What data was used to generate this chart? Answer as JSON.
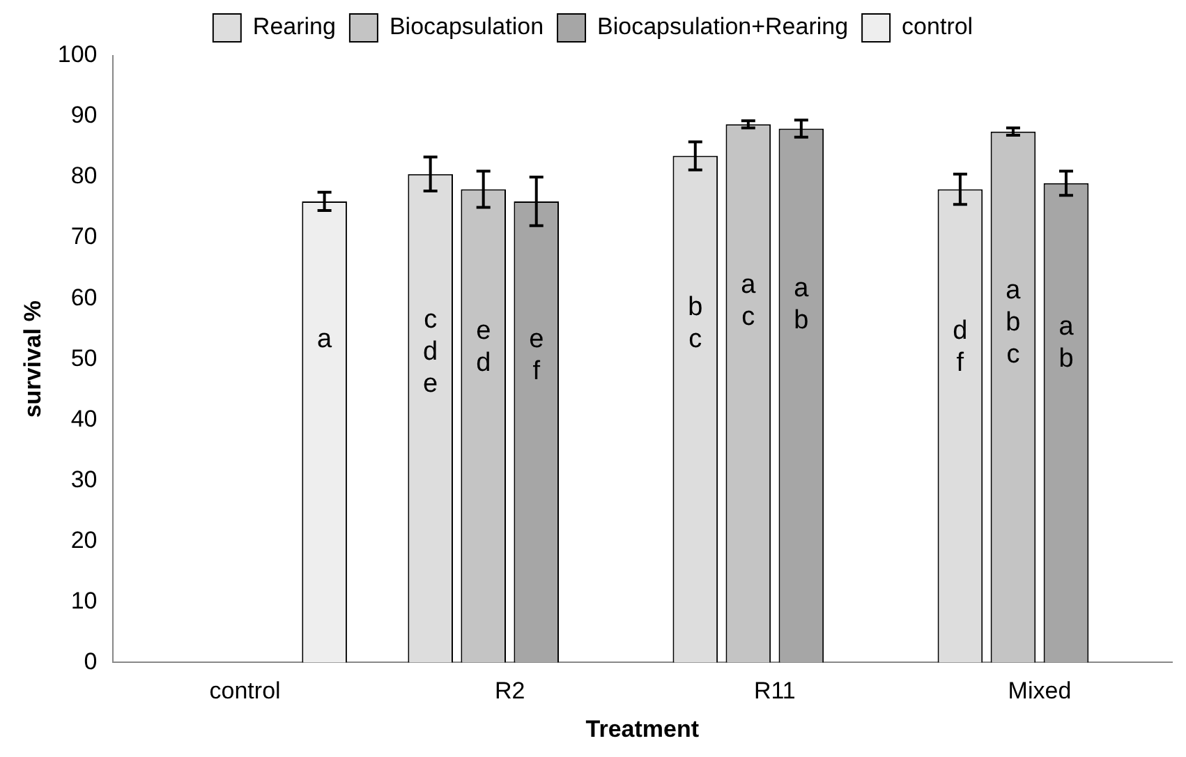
{
  "chart_data": {
    "type": "bar",
    "xlabel": "Treatment",
    "ylabel": "survival %",
    "categories": [
      "control",
      "R2",
      "R11",
      "Mixed"
    ],
    "series": [
      {
        "name": "Rearing",
        "color": "#dddddd",
        "values": [
          null,
          80.5,
          83.5,
          78
        ],
        "errors": [
          null,
          2.8,
          2.3,
          2.5
        ],
        "value_labels": [
          null,
          "c\nd\ne",
          "b\nc",
          "d\nf"
        ]
      },
      {
        "name": "Biocapsulation",
        "color": "#c4c4c4",
        "values": [
          null,
          78,
          88.7,
          87.5
        ],
        "errors": [
          null,
          3,
          0.6,
          0.6
        ],
        "value_labels": [
          null,
          "e\nd",
          "a\nc",
          "a\nb\nc"
        ]
      },
      {
        "name": "Biocapsulation+Rearing",
        "color": "#a6a6a6",
        "values": [
          null,
          76,
          88,
          79
        ],
        "errors": [
          null,
          4,
          1.4,
          2
        ],
        "value_labels": [
          null,
          "e\nf",
          "a\nb",
          "a\nb"
        ]
      },
      {
        "name": "control",
        "color": "#eeeeee",
        "values": [
          76,
          null,
          null,
          null
        ],
        "errors": [
          1.5,
          null,
          null,
          null
        ],
        "value_labels": [
          "a",
          null,
          null,
          null
        ]
      }
    ],
    "ylim": [
      0,
      100
    ],
    "yticks": [
      0,
      10,
      20,
      30,
      40,
      50,
      60,
      70,
      80,
      90,
      100
    ],
    "grid": false,
    "legend": "top"
  }
}
